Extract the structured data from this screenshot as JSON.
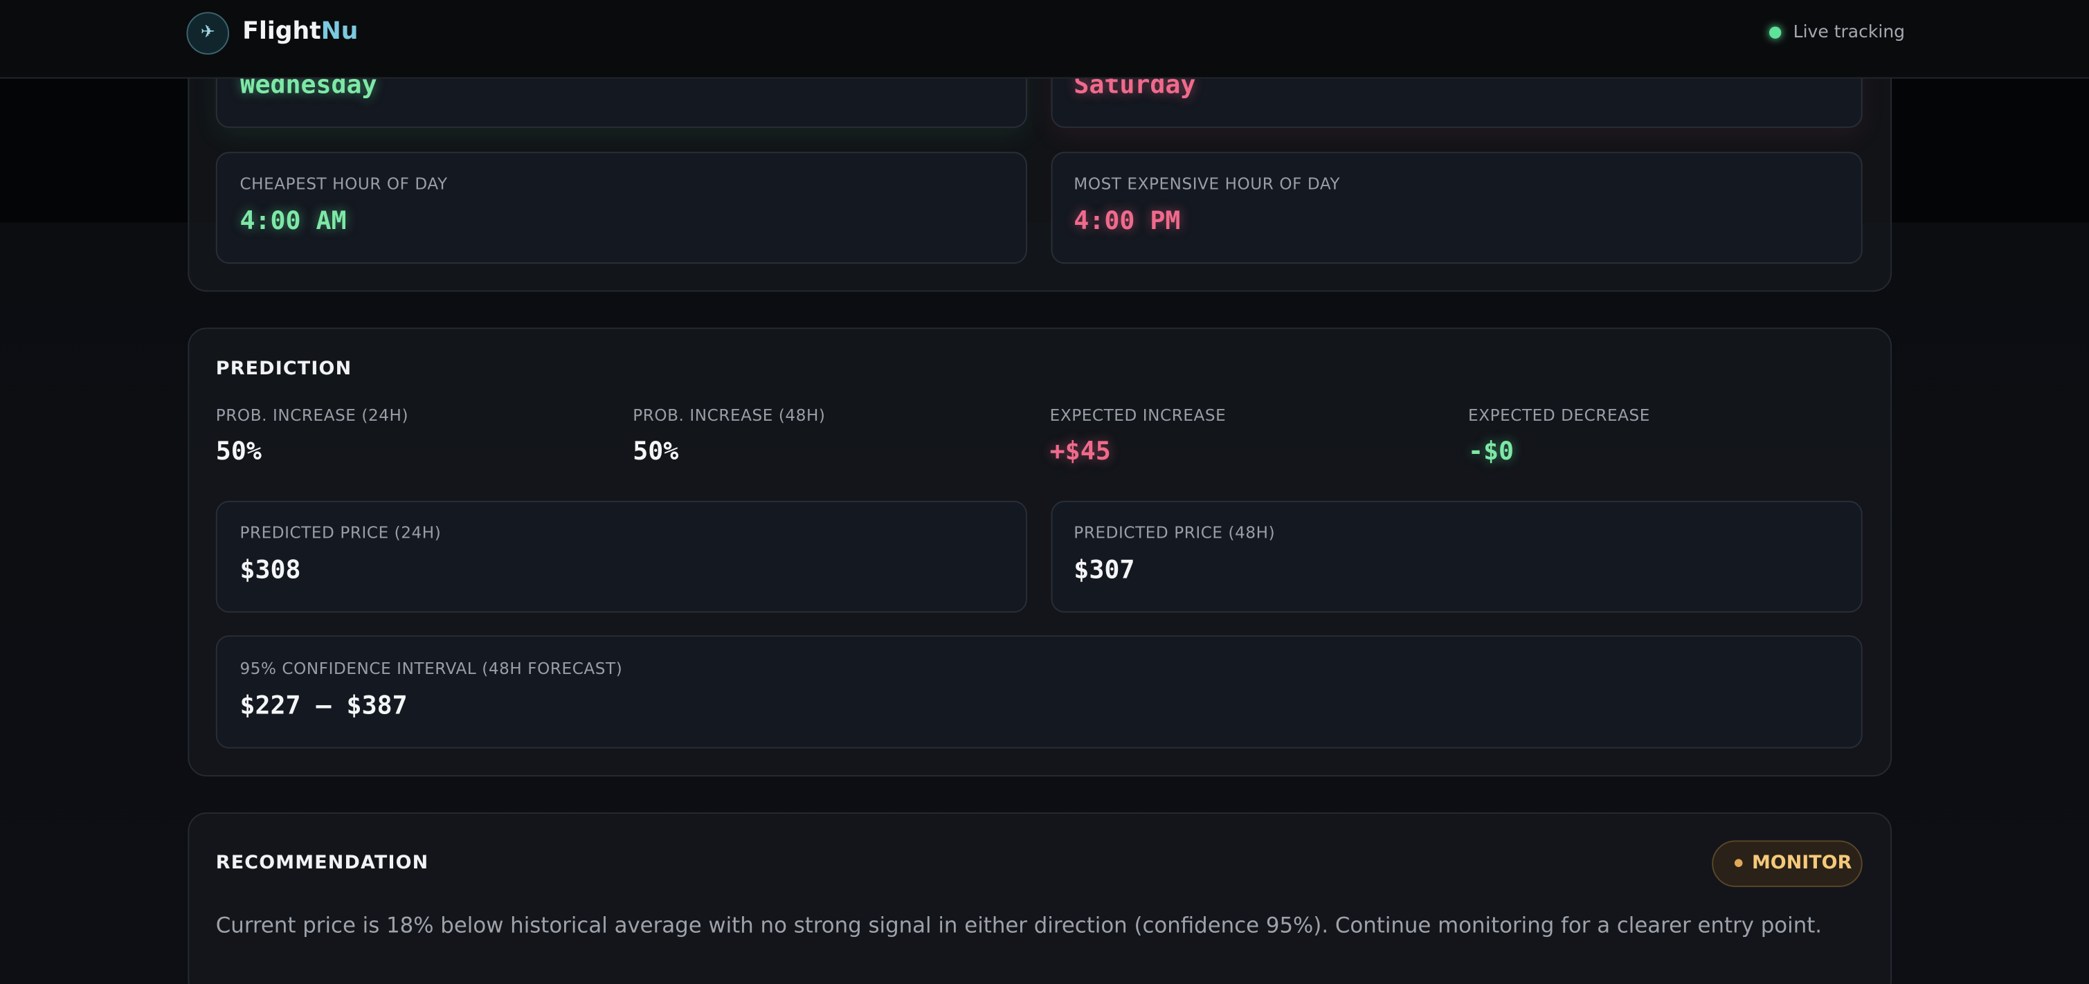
{
  "header": {
    "brand": "Flight",
    "brand_accent": "Nu",
    "status": "Live tracking"
  },
  "timing": {
    "best_day": "Wednesday",
    "worst_day": "Saturday",
    "cheapest_hour": {
      "label": "CHEAPEST HOUR OF DAY",
      "value": "4:00 AM"
    },
    "expensive_hour": {
      "label": "MOST EXPENSIVE HOUR OF DAY",
      "value": "4:00 PM"
    }
  },
  "prediction": {
    "title": "PREDICTION",
    "stats": [
      {
        "label": "PROB. INCREASE (24H)",
        "value": "50%"
      },
      {
        "label": "PROB. INCREASE (48H)",
        "value": "50%"
      },
      {
        "label": "EXPECTED INCREASE",
        "value": "+$45"
      },
      {
        "label": "EXPECTED DECREASE",
        "value": "-$0"
      }
    ],
    "cards": [
      {
        "label": "PREDICTED PRICE (24H)",
        "value": "$308"
      },
      {
        "label": "PREDICTED PRICE (48H)",
        "value": "$307"
      }
    ],
    "confidence": {
      "label": "95% CONFIDENCE INTERVAL (48H FORECAST)",
      "value": "$227 – $387"
    }
  },
  "recommendation": {
    "title": "RECOMMENDATION",
    "badge": "MONITOR",
    "text": "Current price is 18% below historical average with no strong signal in either direction (confidence 95%). Continue monitoring for a clearer entry point."
  }
}
